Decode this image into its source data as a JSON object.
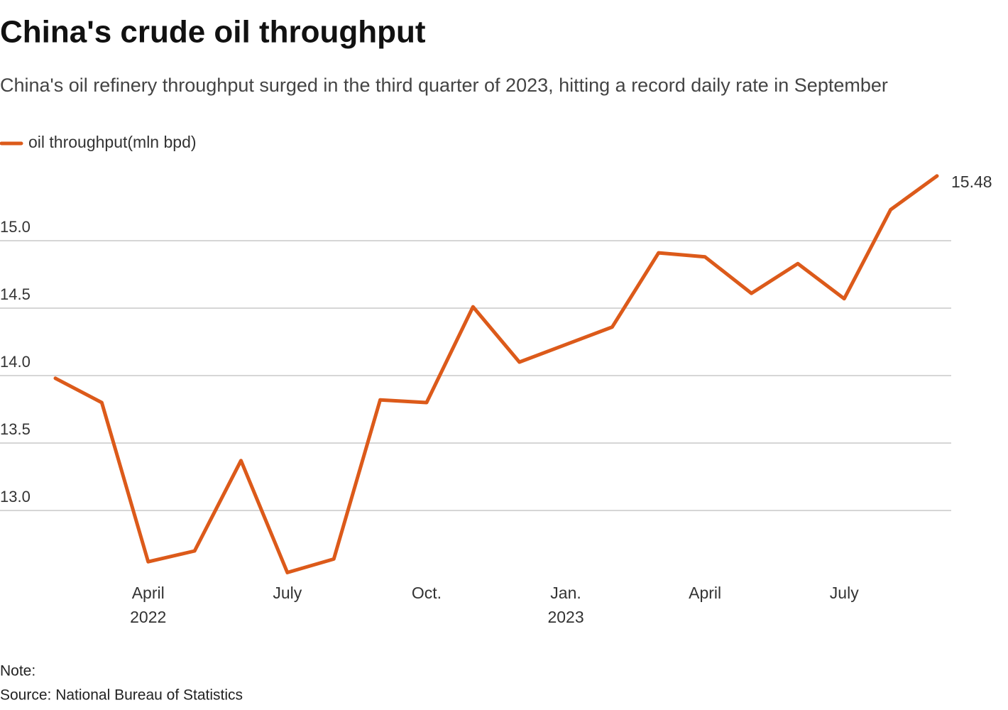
{
  "chart_data": {
    "type": "line",
    "title": "China's crude oil throughput",
    "subtitle": "China's oil refinery throughput surged in the third quarter of 2023, hitting a record daily rate in September",
    "categories": [
      null,
      null,
      "April 2022",
      null,
      null,
      "July",
      null,
      null,
      "Oct.",
      null,
      null,
      "Jan. 2023",
      null,
      null,
      "April",
      null,
      null,
      "July",
      null,
      null
    ],
    "series": [
      {
        "name": "oil throughput(mln bpd)",
        "color": "#dc5a1a",
        "values": [
          13.98,
          13.8,
          12.62,
          12.7,
          13.37,
          12.54,
          12.64,
          13.82,
          13.8,
          14.51,
          14.1,
          14.23,
          14.36,
          14.91,
          14.88,
          14.61,
          14.83,
          14.57,
          15.23,
          15.48
        ]
      }
    ],
    "ylim": [
      12.5,
      15.5
    ],
    "yticks": [
      {
        "value": 13,
        "label": "13.0"
      },
      13.5,
      {
        "value": 14,
        "label": "14.0"
      },
      14.5,
      {
        "value": 15,
        "label": "15.0"
      }
    ],
    "grid": true,
    "note": "Note:",
    "source": "Source: National Bureau of Statistics"
  }
}
